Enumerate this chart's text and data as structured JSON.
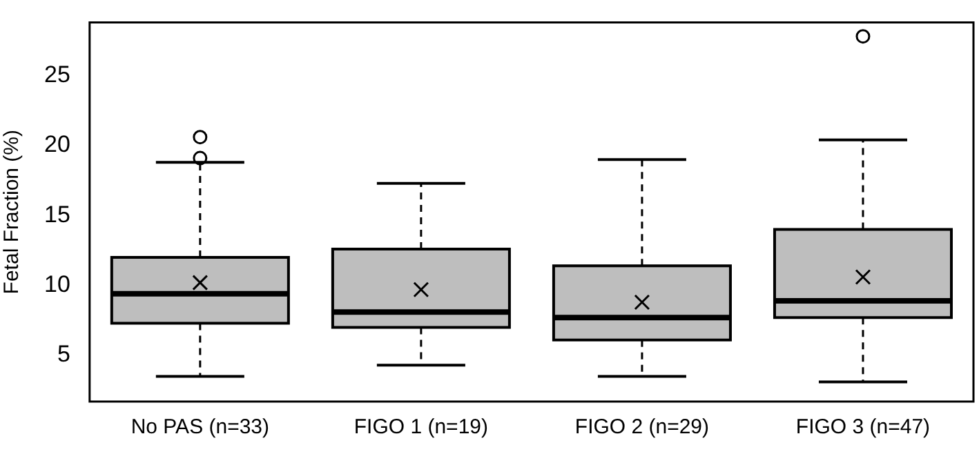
{
  "chart_data": {
    "type": "box",
    "ylabel": "Fetal Fraction (%)",
    "categories": [
      "No PAS (n=33)",
      "FIGO 1 (n=19)",
      "FIGO 2 (n=29)",
      "FIGO 3 (n=47)"
    ],
    "ylim": [
      1.7,
      28.8
    ],
    "yticks": [
      5,
      10,
      15,
      20,
      25
    ],
    "series": [
      {
        "color": "#bebebe",
        "boxes": [
          {
            "low": 3.5,
            "q1": 7.3,
            "median": 9.4,
            "q3": 12.0,
            "high": 18.8,
            "mean": 10.2,
            "outliers": [
              19.1,
              20.6
            ]
          },
          {
            "low": 4.3,
            "q1": 7.0,
            "median": 8.1,
            "q3": 12.6,
            "high": 17.3,
            "mean": 9.7
          },
          {
            "low": 3.5,
            "q1": 6.1,
            "median": 7.7,
            "q3": 11.4,
            "high": 19.0,
            "mean": 8.8
          },
          {
            "low": 3.1,
            "q1": 7.7,
            "median": 8.9,
            "q3": 14.0,
            "high": 20.4,
            "mean": 10.6,
            "outliers": [
              27.8
            ]
          }
        ]
      }
    ]
  }
}
